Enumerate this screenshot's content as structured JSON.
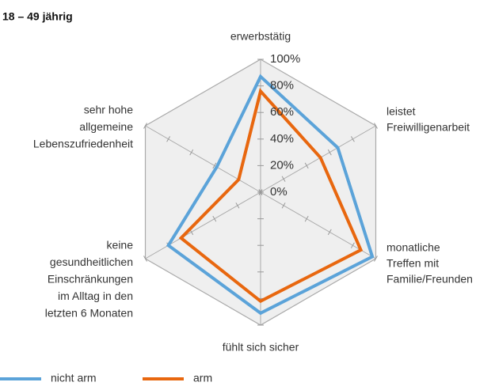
{
  "chart_data": {
    "type": "radar",
    "title": "18 – 49 jährig",
    "categories": [
      [
        "erwerbstätig"
      ],
      [
        "leistet",
        "Freiwilligenarbeit"
      ],
      [
        "monatliche",
        "Treffen mit",
        "Familie/Freunden"
      ],
      [
        "fühlt sich sicher"
      ],
      [
        "keine",
        "gesundheitlichen",
        "Einschränkungen",
        "im Alltag in den",
        "letzten 6 Monaten"
      ],
      [
        "sehr hohe",
        "allgemeine",
        "Lebenszufriedenheit"
      ]
    ],
    "series": [
      {
        "name": "nicht arm",
        "color": "#5ba3d9",
        "values": [
          87,
          67,
          97,
          91,
          80,
          38
        ]
      },
      {
        "name": "arm",
        "color": "#e8670f",
        "values": [
          76,
          52,
          87,
          82,
          69,
          19
        ]
      }
    ],
    "rlim": [
      0,
      100
    ],
    "rticks": [
      {
        "value": 0,
        "label": "0%"
      },
      {
        "value": 20,
        "label": "20%"
      },
      {
        "value": 40,
        "label": "40%"
      },
      {
        "value": 60,
        "label": "60%"
      },
      {
        "value": 80,
        "label": "80%"
      },
      {
        "value": 100,
        "label": "100%"
      }
    ]
  }
}
